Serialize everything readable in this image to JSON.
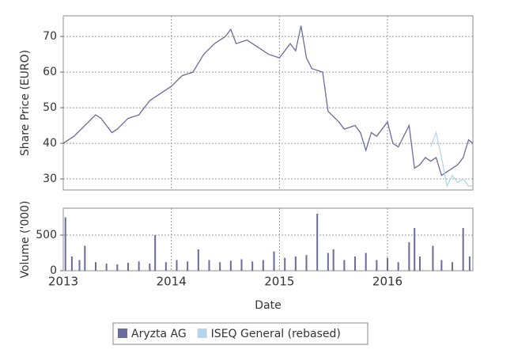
{
  "chart_data": [
    {
      "type": "line",
      "ylabel": "Share Price (EURO)",
      "x": [
        2013.0,
        2013.1,
        2013.2,
        2013.3,
        2013.35,
        2013.45,
        2013.5,
        2013.6,
        2013.7,
        2013.8,
        2013.9,
        2014.0,
        2014.1,
        2014.2,
        2014.3,
        2014.4,
        2014.5,
        2014.55,
        2014.6,
        2014.7,
        2014.8,
        2014.9,
        2015.0,
        2015.1,
        2015.15,
        2015.2,
        2015.25,
        2015.3,
        2015.4,
        2015.45,
        2015.55,
        2015.6,
        2015.7,
        2015.75,
        2015.8,
        2015.85,
        2015.9,
        2016.0,
        2016.05,
        2016.1,
        2016.2,
        2016.25,
        2016.3,
        2016.35,
        2016.4,
        2016.45,
        2016.5,
        2016.55,
        2016.6,
        2016.65,
        2016.7,
        2016.75,
        2016.79
      ],
      "series": [
        {
          "name": "Aryzta AG",
          "color": "#6b6b9e",
          "values": [
            40,
            42,
            45,
            48,
            47,
            43,
            44,
            47,
            48,
            52,
            54,
            56,
            59,
            60,
            65,
            68,
            70,
            72,
            68,
            69,
            67,
            65,
            64,
            68,
            66,
            73,
            64,
            61,
            60,
            49,
            46,
            44,
            45,
            43,
            38,
            43,
            42,
            46,
            40,
            39,
            45,
            33,
            34,
            36,
            35,
            36,
            31,
            32,
            33,
            34,
            36,
            41,
            40
          ]
        },
        {
          "name": "ISEQ General (rebased)",
          "color": "#b8d4ec",
          "values": [
            null,
            null,
            null,
            null,
            null,
            null,
            null,
            null,
            null,
            null,
            null,
            null,
            null,
            null,
            null,
            null,
            null,
            null,
            null,
            null,
            null,
            null,
            null,
            null,
            null,
            null,
            null,
            null,
            null,
            null,
            null,
            null,
            null,
            null,
            null,
            null,
            null,
            null,
            null,
            null,
            null,
            null,
            null,
            null,
            39,
            43,
            36,
            28,
            31,
            29,
            30,
            28,
            28
          ]
        }
      ],
      "xlim": [
        2013,
        2016.79
      ],
      "xticks": [
        2013,
        2014,
        2015,
        2016
      ],
      "ylim": [
        26.9,
        75.8
      ],
      "yticks": [
        30,
        40,
        50,
        60,
        70
      ],
      "grid": true
    },
    {
      "type": "bar",
      "ylabel": "Volume ('000)",
      "xlabel": "Date",
      "color": "#6b6b9e",
      "x": [
        2013.02,
        2013.08,
        2013.15,
        2013.2,
        2013.3,
        2013.4,
        2013.5,
        2013.6,
        2013.7,
        2013.8,
        2013.85,
        2013.95,
        2014.05,
        2014.15,
        2014.25,
        2014.35,
        2014.45,
        2014.55,
        2014.65,
        2014.75,
        2014.85,
        2014.95,
        2015.05,
        2015.15,
        2015.25,
        2015.35,
        2015.45,
        2015.5,
        2015.6,
        2015.7,
        2015.8,
        2015.9,
        2016.0,
        2016.1,
        2016.2,
        2016.25,
        2016.3,
        2016.42,
        2016.5,
        2016.6,
        2016.7,
        2016.76
      ],
      "values": [
        750,
        200,
        150,
        350,
        120,
        100,
        90,
        110,
        130,
        100,
        500,
        120,
        150,
        130,
        300,
        150,
        120,
        140,
        160,
        130,
        150,
        270,
        180,
        200,
        220,
        800,
        250,
        300,
        150,
        200,
        250,
        150,
        180,
        120,
        400,
        600,
        200,
        350,
        150,
        120,
        600,
        200
      ],
      "xlim": [
        2013,
        2016.79
      ],
      "xticks": [
        2013,
        2014,
        2015,
        2016
      ],
      "ylim": [
        0,
        878
      ],
      "yticks": [
        0,
        500
      ],
      "grid": true
    }
  ]
}
